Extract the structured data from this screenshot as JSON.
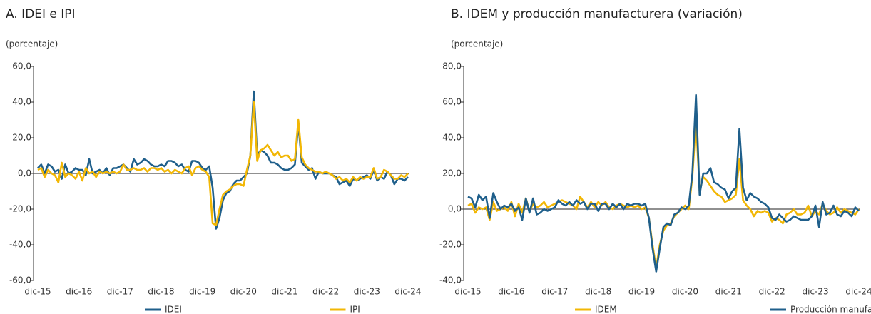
{
  "chart_data": [
    {
      "type": "line",
      "title": "A. IDEI e IPI",
      "subtitle": "(porcentaje)",
      "categories": [
        "dic-15",
        null,
        null,
        null,
        null,
        null,
        null,
        null,
        null,
        null,
        null,
        null,
        "dic-16",
        null,
        null,
        null,
        null,
        null,
        null,
        null,
        null,
        null,
        null,
        null,
        "dic-17",
        null,
        null,
        null,
        null,
        null,
        null,
        null,
        null,
        null,
        null,
        null,
        "dic-18",
        null,
        null,
        null,
        null,
        null,
        null,
        null,
        null,
        null,
        null,
        null,
        "dic-19",
        null,
        null,
        null,
        null,
        null,
        null,
        null,
        null,
        null,
        null,
        null,
        "dic-20",
        null,
        null,
        null,
        null,
        null,
        null,
        null,
        null,
        null,
        null,
        null,
        "dic-21",
        null,
        null,
        null,
        null,
        null,
        null,
        null,
        null,
        null,
        null,
        null,
        "dic-22",
        null,
        null,
        null,
        null,
        null,
        null,
        null,
        null,
        null,
        null,
        null,
        "dic-23",
        null,
        null,
        null,
        null,
        null,
        null,
        null,
        null,
        null,
        null,
        null,
        "dic-24"
      ],
      "ylim": [
        -60,
        60
      ],
      "yticks": [
        {
          "value": -60,
          "label": "-60,0"
        },
        {
          "value": -40,
          "label": "-40,0"
        },
        {
          "value": -20,
          "label": "-20,0"
        },
        {
          "value": 0,
          "label": "0,0"
        },
        {
          "value": 20,
          "label": "20,0"
        },
        {
          "value": 40,
          "label": "40,0"
        },
        {
          "value": 60,
          "label": "60,0"
        }
      ],
      "series": [
        {
          "name": "IDEI",
          "color": "#1f5f8b",
          "values": [
            3,
            5,
            0,
            5,
            4,
            1,
            2,
            -3,
            5,
            0,
            1,
            3,
            2,
            2,
            -1,
            8,
            0,
            1,
            2,
            0,
            3,
            -1,
            3,
            3,
            4,
            5,
            3,
            1,
            8,
            5,
            6,
            8,
            7,
            5,
            4,
            4,
            5,
            4,
            7,
            7,
            6,
            4,
            5,
            2,
            1,
            7,
            7,
            6,
            3,
            2,
            4,
            -8,
            -31,
            -25,
            -15,
            -11,
            -10,
            -6,
            -4,
            -4,
            -2,
            0,
            10,
            46,
            10,
            13,
            12,
            10,
            6,
            6,
            5,
            3,
            2,
            2,
            3,
            5,
            28,
            6,
            4,
            2,
            3,
            -3,
            1,
            0,
            0,
            0,
            -1,
            -2,
            -6,
            -5,
            -4,
            -7,
            -3,
            -4,
            -3,
            -2,
            -1,
            -3,
            2,
            -4,
            -2,
            -3,
            1,
            -1,
            -6,
            -3,
            -3,
            -4,
            -2
          ]
        },
        {
          "name": "IPI",
          "color": "#f2b705",
          "values": [
            2,
            3,
            -2,
            2,
            0,
            -1,
            -5,
            6,
            -2,
            0,
            -1,
            -3,
            1,
            -4,
            3,
            0,
            1,
            -2,
            1,
            0,
            1,
            0,
            1,
            0,
            1,
            5,
            2,
            2,
            3,
            2,
            2,
            3,
            1,
            3,
            3,
            2,
            3,
            1,
            2,
            0,
            2,
            1,
            0,
            3,
            4,
            -1,
            3,
            4,
            2,
            1,
            -2,
            -28,
            -29,
            -20,
            -12,
            -10,
            -9,
            -7,
            -6,
            -6,
            -7,
            2,
            10,
            40,
            7,
            13,
            14,
            16,
            13,
            10,
            12,
            9,
            10,
            10,
            7,
            8,
            30,
            9,
            5,
            3,
            2,
            1,
            1,
            0,
            1,
            0,
            -1,
            -3,
            -2,
            -4,
            -3,
            -5,
            -2,
            -4,
            -2,
            -3,
            -2,
            -2,
            3,
            -3,
            -2,
            2,
            1,
            -1,
            -3,
            -3,
            -1,
            -2,
            0
          ]
        }
      ]
    },
    {
      "type": "line",
      "title": "B. IDEM y producción manufacturera (variación)",
      "subtitle": "(porcentaje)",
      "categories": [
        "dic-15",
        null,
        null,
        null,
        null,
        null,
        null,
        null,
        null,
        null,
        null,
        null,
        "dic-16",
        null,
        null,
        null,
        null,
        null,
        null,
        null,
        null,
        null,
        null,
        null,
        "dic-17",
        null,
        null,
        null,
        null,
        null,
        null,
        null,
        null,
        null,
        null,
        null,
        "dic-18",
        null,
        null,
        null,
        null,
        null,
        null,
        null,
        null,
        null,
        null,
        null,
        "dic-19",
        null,
        null,
        null,
        null,
        null,
        null,
        null,
        null,
        null,
        null,
        null,
        "dic-20",
        null,
        null,
        null,
        null,
        null,
        null,
        null,
        null,
        null,
        null,
        null,
        "dic-21",
        null,
        null,
        null,
        null,
        null,
        null,
        null,
        null,
        null,
        null,
        null,
        "dic-22",
        null,
        null,
        null,
        null,
        null,
        null,
        null,
        null,
        null,
        null,
        null,
        "dic-23",
        null,
        null,
        null,
        null,
        null,
        null,
        null,
        null,
        null,
        null,
        null,
        "dic-24"
      ],
      "ylim": [
        -40,
        80
      ],
      "yticks": [
        {
          "value": -40,
          "label": "-40,0"
        },
        {
          "value": -20,
          "label": "-20,0"
        },
        {
          "value": 0,
          "label": "0,0"
        },
        {
          "value": 20,
          "label": "20,0"
        },
        {
          "value": 40,
          "label": "40,0"
        },
        {
          "value": 60,
          "label": "60,0"
        },
        {
          "value": 80,
          "label": "80,0"
        }
      ],
      "series": [
        {
          "name": "IDEM",
          "color": "#f2b705",
          "values": [
            2,
            3,
            -2,
            1,
            0,
            1,
            -6,
            4,
            -1,
            0,
            1,
            -1,
            4,
            -4,
            3,
            -2,
            6,
            -1,
            3,
            1,
            2,
            4,
            1,
            2,
            3,
            4,
            5,
            4,
            3,
            2,
            0,
            7,
            4,
            1,
            4,
            1,
            4,
            2,
            4,
            1,
            0,
            2,
            3,
            2,
            1,
            2,
            1,
            2,
            0,
            1,
            -5,
            -20,
            -33,
            -20,
            -12,
            -9,
            -8,
            -4,
            -2,
            0,
            2,
            0,
            18,
            50,
            10,
            18,
            16,
            13,
            10,
            8,
            7,
            4,
            5,
            6,
            8,
            28,
            5,
            2,
            0,
            -4,
            -1,
            -2,
            -1,
            -2,
            -7,
            -5,
            -6,
            -8,
            -3,
            -2,
            0,
            -3,
            -3,
            -2,
            2,
            -4,
            -1,
            -3,
            3,
            -1,
            -3,
            -2,
            1,
            -2,
            0,
            -1,
            -2,
            -3,
            0
          ]
        },
        {
          "name": "Producción manufacturera - DANE",
          "color": "#1f5f8b",
          "values": [
            7,
            6,
            1,
            8,
            5,
            7,
            -5,
            9,
            4,
            0,
            2,
            1,
            3,
            -1,
            1,
            -6,
            6,
            -2,
            6,
            -3,
            -2,
            0,
            -1,
            0,
            1,
            5,
            3,
            2,
            4,
            2,
            5,
            3,
            4,
            0,
            3,
            3,
            -1,
            3,
            3,
            0,
            3,
            1,
            3,
            0,
            3,
            2,
            3,
            3,
            2,
            3,
            -5,
            -22,
            -35,
            -22,
            -10,
            -8,
            -9,
            -3,
            -2,
            1,
            0,
            2,
            20,
            64,
            8,
            20,
            20,
            23,
            15,
            14,
            12,
            11,
            6,
            10,
            12,
            45,
            12,
            5,
            9,
            7,
            6,
            4,
            3,
            1,
            -5,
            -6,
            -3,
            -5,
            -7,
            -6,
            -4,
            -5,
            -6,
            -6,
            -6,
            -4,
            2,
            -10,
            4,
            -3,
            -2,
            2,
            -3,
            -4,
            -1,
            -2,
            -4,
            1,
            -1
          ]
        }
      ]
    }
  ]
}
